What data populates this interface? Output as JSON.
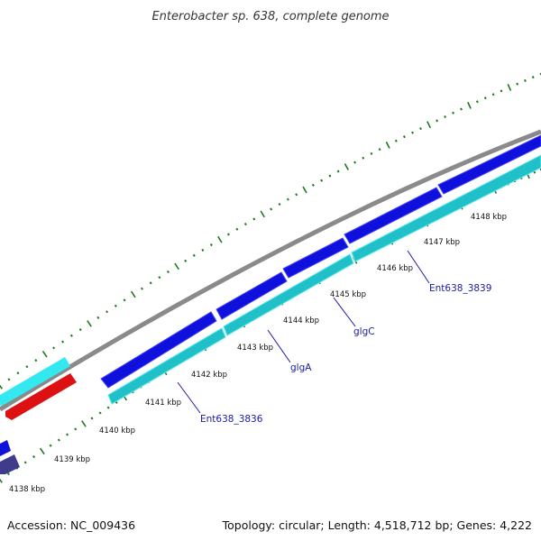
{
  "title": "Enterobacter sp. 638, complete genome",
  "footer": {
    "accession": "Accession: NC_009436",
    "summary": "Topology: circular; Length: 4,518,712 bp; Genes: 4,222"
  },
  "ticks": [
    {
      "label": "4138 kbp"
    },
    {
      "label": "4139 kbp"
    },
    {
      "label": "4140 kbp"
    },
    {
      "label": "4141 kbp"
    },
    {
      "label": "4142 kbp"
    },
    {
      "label": "4143 kbp"
    },
    {
      "label": "4144 kbp"
    },
    {
      "label": "4145 kbp"
    },
    {
      "label": "4146 kbp"
    },
    {
      "label": "4147 kbp"
    },
    {
      "label": "4148 kbp"
    }
  ],
  "gene_labels": [
    {
      "name": "Ent638_3836"
    },
    {
      "name": "glgA"
    },
    {
      "name": "glgC"
    },
    {
      "name": "Ent638_3839"
    }
  ],
  "colors": {
    "backbone": "#8a8a8a",
    "forward_cds": "#1010dd",
    "forward_cds_top": "#4040ff",
    "reverse_cds": "#20c0c8",
    "reverse_cds_top": "#60e8ee",
    "outer_cyan": "#33e8ee",
    "red": "#dd1111",
    "dark_purple": "#403c8c",
    "tick": "#1c7a1c",
    "label_line": "#1a1aaa"
  }
}
